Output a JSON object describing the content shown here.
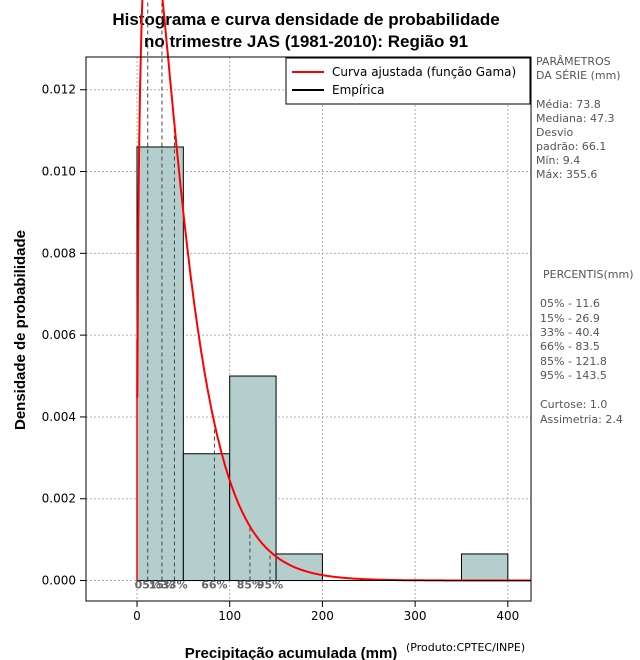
{
  "chart_data": {
    "type": "histogram",
    "title": [
      "Histograma e curva densidade de probabilidade",
      "no trimestre JAS (1981-2010): Região 91"
    ],
    "xlabel": "Precipitação acumulada (mm)",
    "ylabel": "Densidade de probabilidade",
    "credit": "(Produto:CPTEC/INPE)",
    "xlim": [
      -55,
      425
    ],
    "ylim": [
      -0.0005,
      0.0128
    ],
    "xticks": [
      0,
      100,
      200,
      300,
      400
    ],
    "yticks": [
      0.0,
      0.002,
      0.004,
      0.006,
      0.008,
      0.01,
      0.012
    ],
    "ytick_labels": [
      "0.000",
      "0.002",
      "0.004",
      "0.006",
      "0.008",
      "0.010",
      "0.012"
    ],
    "grid": true,
    "bins": [
      {
        "start": 0,
        "end": 50,
        "density": 0.0106
      },
      {
        "start": 50,
        "end": 100,
        "density": 0.0031
      },
      {
        "start": 100,
        "end": 150,
        "density": 0.005
      },
      {
        "start": 150,
        "end": 200,
        "density": 0.00065
      },
      {
        "start": 350,
        "end": 400,
        "density": 0.00065
      }
    ],
    "bar_color": "#b4cecd",
    "fitted_curve": {
      "name": "Curva ajustada (função Gama)",
      "color": "#ff0000",
      "shape": 1.45,
      "scale": 31.0
    },
    "empirical": {
      "name": "Empírica",
      "color": "#000000"
    },
    "legend_position": "top-right",
    "percentile_lines": [
      {
        "label": "05%",
        "value": 11.6
      },
      {
        "label": "15%",
        "value": 26.9
      },
      {
        "label": "33%",
        "value": 40.4
      },
      {
        "label": "66%",
        "value": 83.5
      },
      {
        "label": "85%",
        "value": 121.8
      },
      {
        "label": "95%",
        "value": 143.5
      }
    ],
    "percentile_axis_labels": [
      "05%",
      "15%",
      "33%",
      "66%",
      "85%",
      "95%"
    ]
  },
  "side_panel": {
    "params_title_1": "PARÂMETROS",
    "params_title_2": " DA SÉRIE (mm)",
    "stats": [
      "Média:  73.8",
      "Mediana:  47.3",
      "Desvio",
      "padrão:  66.1",
      "Mín:  9.4",
      "Máx:  355.6"
    ],
    "percentis_title": "PERCENTIS(mm)",
    "percentis": [
      "05% -  11.6",
      "15% -  26.9",
      "33% -  40.4",
      "66% -  83.5",
      "85% -  121.8",
      "95% -  143.5"
    ],
    "extra": [
      "Curtose:  1.0",
      "Assimetria:  2.4"
    ]
  }
}
